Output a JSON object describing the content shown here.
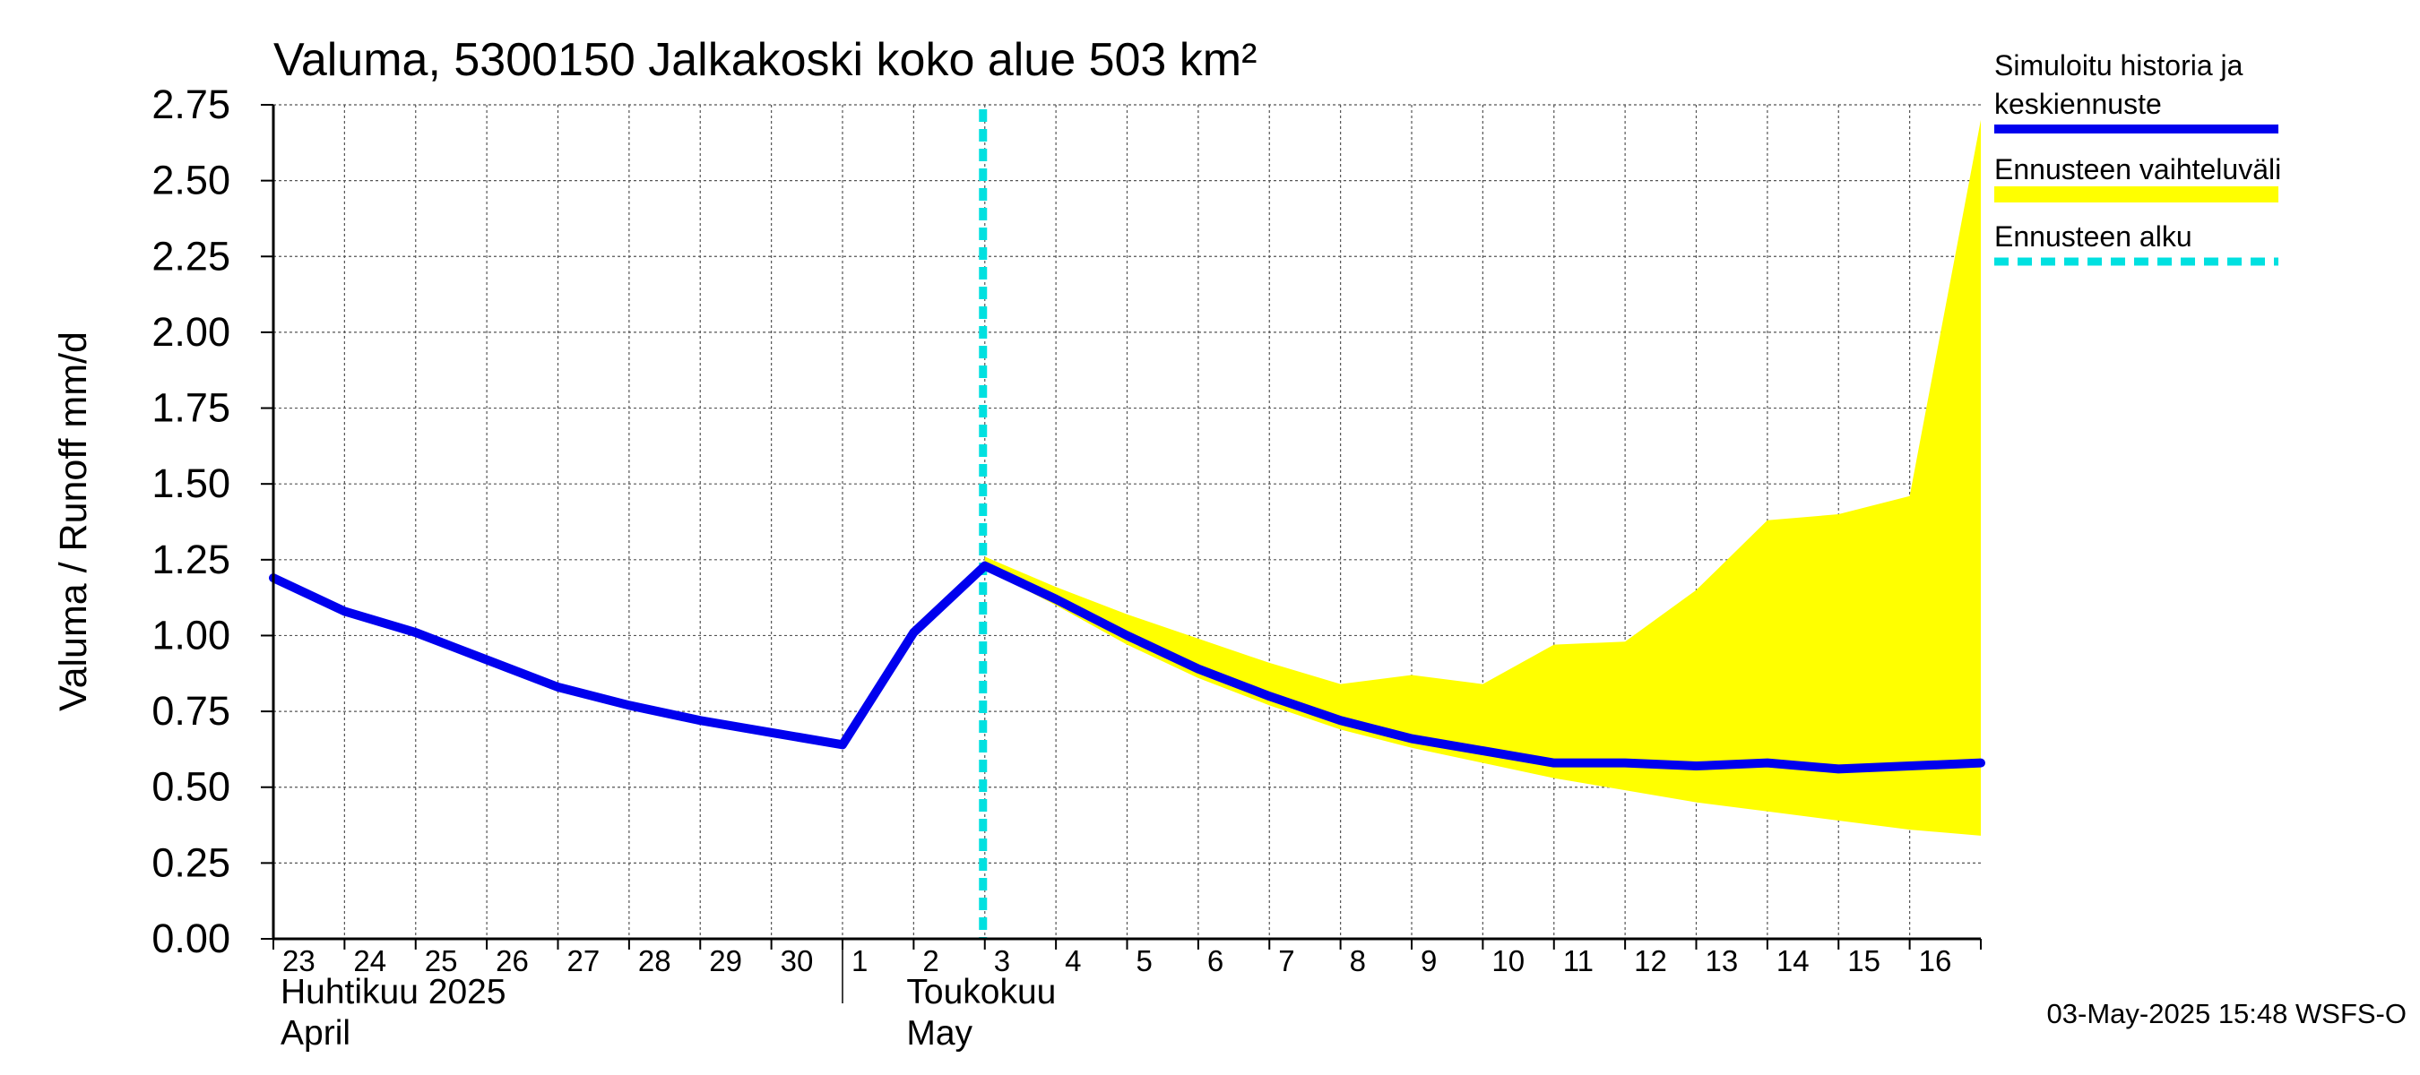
{
  "chart_data": {
    "type": "line",
    "title": "Valuma, 5300150 Jalkakoski koko alue 503 km²",
    "ylabel": "Valuma / Runoff     mm/d",
    "ylim": [
      0,
      2.75
    ],
    "yticks": [
      "0.00",
      "0.25",
      "0.50",
      "0.75",
      "1.00",
      "1.25",
      "1.50",
      "1.75",
      "2.00",
      "2.25",
      "2.50",
      "2.75"
    ],
    "x_start": "2025-04-23",
    "x_end": "2025-05-16",
    "x_tick_labels": [
      "23",
      "24",
      "25",
      "26",
      "27",
      "28",
      "29",
      "30",
      "1",
      "2",
      "3",
      "4",
      "5",
      "6",
      "7",
      "8",
      "9",
      "10",
      "11",
      "12",
      "13",
      "14",
      "15",
      "16"
    ],
    "month_labels": [
      {
        "line1": "Huhtikuu  2025",
        "line2": "April"
      },
      {
        "line1": "Toukokuu",
        "line2": "May"
      }
    ],
    "forecast_start": "2025-05-03",
    "series": [
      {
        "name": "Simuloitu historia ja keskiennuste",
        "color": "#0000ee",
        "x": [
          "2025-04-23",
          "2025-04-24",
          "2025-04-25",
          "2025-04-26",
          "2025-04-27",
          "2025-04-28",
          "2025-04-29",
          "2025-04-30",
          "2025-05-01",
          "2025-05-02",
          "2025-05-03",
          "2025-05-04",
          "2025-05-05",
          "2025-05-06",
          "2025-05-07",
          "2025-05-08",
          "2025-05-09",
          "2025-05-10",
          "2025-05-11",
          "2025-05-12",
          "2025-05-13",
          "2025-05-14",
          "2025-05-15",
          "2025-05-16",
          "2025-05-17"
        ],
        "values": [
          1.19,
          1.08,
          1.01,
          0.92,
          0.83,
          0.77,
          0.72,
          0.68,
          0.64,
          1.01,
          1.23,
          1.12,
          1.0,
          0.89,
          0.8,
          0.72,
          0.66,
          0.62,
          0.58,
          0.58,
          0.57,
          0.58,
          0.56,
          0.57,
          0.58
        ]
      }
    ],
    "band": {
      "name": "Ennusteen vaihteluväli",
      "color": "#ffff00",
      "x": [
        "2025-05-03",
        "2025-05-04",
        "2025-05-05",
        "2025-05-06",
        "2025-05-07",
        "2025-05-08",
        "2025-05-09",
        "2025-05-10",
        "2025-05-11",
        "2025-05-12",
        "2025-05-13",
        "2025-05-14",
        "2025-05-15",
        "2025-05-16",
        "2025-05-17"
      ],
      "upper": [
        1.26,
        1.16,
        1.07,
        0.99,
        0.91,
        0.84,
        0.87,
        0.84,
        0.97,
        0.98,
        1.15,
        1.38,
        1.4,
        1.46,
        2.7
      ],
      "lower": [
        1.22,
        1.1,
        0.97,
        0.86,
        0.77,
        0.69,
        0.63,
        0.58,
        0.53,
        0.49,
        0.45,
        0.42,
        0.39,
        0.36,
        0.34
      ]
    },
    "forecast_line": {
      "name": "Ennusteen alku",
      "color": "#00e0e0"
    },
    "legend_position": "right",
    "grid": true
  },
  "timestamp": "03-May-2025 15:48 WSFS-O"
}
